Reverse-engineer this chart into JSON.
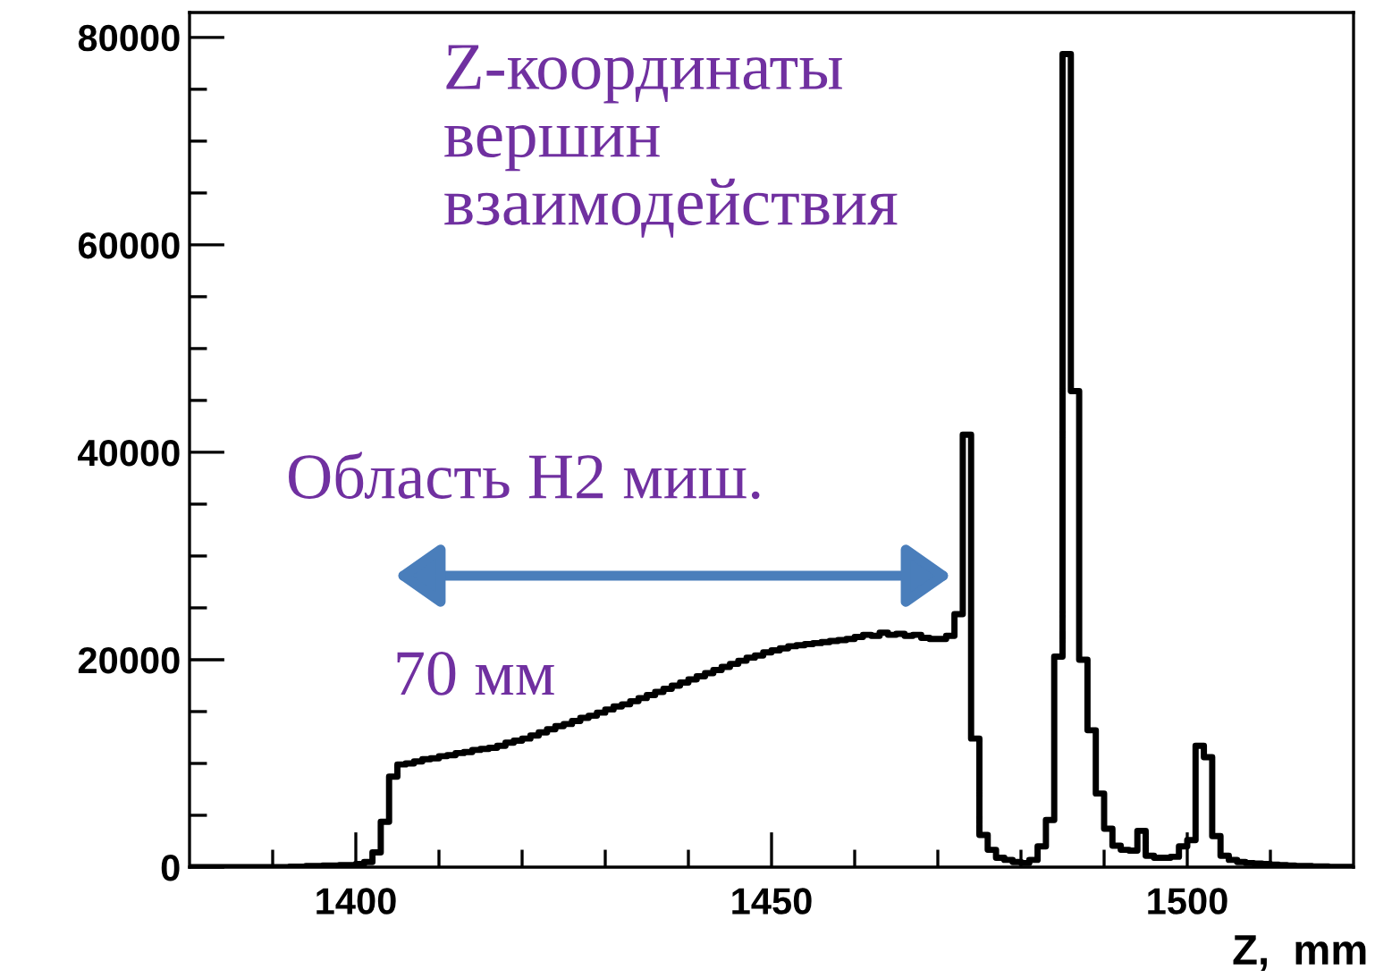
{
  "chart_data": {
    "type": "histogram",
    "title": "Z-координаты\nвершин\nвзаимодействия",
    "xlabel": "Z,  mm",
    "annotations": [
      "Область H2 миш.",
      "70 мм"
    ],
    "color": "#000000",
    "bins": [
      1380,
      1381,
      1382,
      1383,
      1384,
      1385,
      1386,
      1387,
      1388,
      1389,
      1390,
      1391,
      1392,
      1393,
      1394,
      1395,
      1396,
      1397,
      1398,
      1399,
      1400,
      1401,
      1402,
      1403,
      1404,
      1405,
      1406,
      1407,
      1408,
      1409,
      1410,
      1411,
      1412,
      1413,
      1414,
      1415,
      1416,
      1417,
      1418,
      1419,
      1420,
      1421,
      1422,
      1423,
      1424,
      1425,
      1426,
      1427,
      1428,
      1429,
      1430,
      1431,
      1432,
      1433,
      1434,
      1435,
      1436,
      1437,
      1438,
      1439,
      1440,
      1441,
      1442,
      1443,
      1444,
      1445,
      1446,
      1447,
      1448,
      1449,
      1450,
      1451,
      1452,
      1453,
      1454,
      1455,
      1456,
      1457,
      1458,
      1459,
      1460,
      1461,
      1462,
      1463,
      1464,
      1465,
      1466,
      1467,
      1468,
      1469,
      1470,
      1471,
      1472,
      1473,
      1474,
      1475,
      1476,
      1477,
      1478,
      1479,
      1480,
      1481,
      1482,
      1483,
      1484,
      1485,
      1486,
      1487,
      1488,
      1489,
      1490,
      1491,
      1492,
      1493,
      1494,
      1495,
      1496,
      1497,
      1498,
      1499,
      1500,
      1501,
      1502,
      1503,
      1504,
      1505,
      1506,
      1507,
      1508,
      1509,
      1510,
      1511,
      1512,
      1513,
      1514,
      1515,
      1516,
      1517,
      1518,
      1519,
      1520
    ],
    "values": [
      0,
      0,
      0,
      0,
      0,
      0,
      0,
      0,
      0,
      0,
      0,
      0,
      50,
      50,
      100,
      100,
      150,
      150,
      200,
      200,
      300,
      500,
      1430,
      4380,
      8720,
      9900,
      10000,
      10200,
      10400,
      10500,
      10700,
      10800,
      11000,
      11100,
      11300,
      11400,
      11500,
      11700,
      12000,
      12200,
      12400,
      12700,
      13000,
      13300,
      13600,
      13800,
      14100,
      14400,
      14600,
      14900,
      15200,
      15500,
      15700,
      16000,
      16300,
      16600,
      16900,
      17200,
      17500,
      17800,
      18100,
      18400,
      18700,
      19000,
      19300,
      19600,
      19900,
      20200,
      20400,
      20700,
      20900,
      21100,
      21300,
      21400,
      21500,
      21600,
      21700,
      21800,
      21900,
      22000,
      22200,
      22400,
      22300,
      22600,
      22400,
      22500,
      22300,
      22400,
      22100,
      22000,
      22000,
      22300,
      24400,
      41700,
      12400,
      3100,
      1670,
      900,
      700,
      500,
      400,
      700,
      2000,
      4550,
      20300,
      78400,
      45900,
      20000,
      13200,
      7100,
      3700,
      2070,
      1670,
      1600,
      3500,
      1100,
      900,
      900,
      1000,
      2000,
      2600,
      11700,
      10600,
      3000,
      1100,
      700,
      500,
      400,
      350,
      300,
      250,
      200,
      150,
      120,
      100,
      80,
      60,
      50,
      40,
      30
    ],
    "xlim": [
      1380,
      1520
    ],
    "xticks": [
      {
        "value": 1390,
        "label": null
      },
      1400,
      {
        "value": 1410,
        "label": null
      },
      {
        "value": 1420,
        "label": null
      },
      {
        "value": 1430,
        "label": null
      },
      {
        "value": 1440,
        "label": null
      },
      1450,
      {
        "value": 1460,
        "label": null
      },
      {
        "value": 1470,
        "label": null
      },
      {
        "value": 1480,
        "label": null
      },
      {
        "value": 1490,
        "label": null
      },
      1500,
      {
        "value": 1510,
        "label": null
      }
    ],
    "ylim": [
      0,
      82400
    ],
    "yticks": [
      0,
      {
        "value": 5000,
        "label": null
      },
      {
        "value": 10000,
        "label": null
      },
      {
        "value": 15000,
        "label": null
      },
      20000,
      {
        "value": 25000,
        "label": null
      },
      {
        "value": 30000,
        "label": null
      },
      {
        "value": 35000,
        "label": null
      },
      40000,
      {
        "value": 45000,
        "label": null
      },
      {
        "value": 50000,
        "label": null
      },
      {
        "value": 55000,
        "label": null
      },
      60000,
      {
        "value": 65000,
        "label": null
      },
      {
        "value": 70000,
        "label": null
      },
      {
        "value": 75000,
        "label": null
      },
      80000
    ],
    "grid": false,
    "legend": false
  }
}
